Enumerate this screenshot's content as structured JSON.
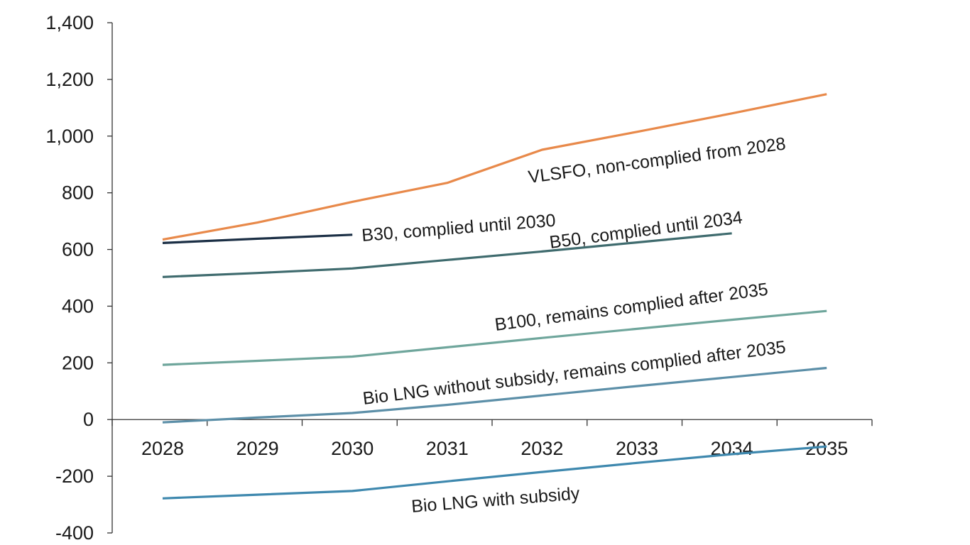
{
  "chart_data": {
    "type": "line",
    "categories": [
      "2028",
      "2029",
      "2030",
      "2031",
      "2032",
      "2033",
      "2034",
      "2035"
    ],
    "ylim": [
      -400,
      1400
    ],
    "yticks": [
      -400,
      -200,
      0,
      200,
      400,
      600,
      800,
      1000,
      1200,
      1400
    ],
    "ytick_labels": [
      "-400",
      "-200",
      "0",
      "200",
      "400",
      "600",
      "800",
      "1,000",
      "1,200",
      "1,400"
    ],
    "grid": false,
    "legend": "none (series labelled inline)",
    "series": [
      {
        "name": "VLSFO, non-complied from 2028",
        "color": "#E8894A",
        "x": [
          0,
          1,
          2,
          3,
          4,
          5,
          6,
          7
        ],
        "values": [
          635,
          695,
          768,
          835,
          952,
          1015,
          1080,
          1148
        ]
      },
      {
        "name": "B30, complied until 2030",
        "color": "#1B2F45",
        "x": [
          0,
          1,
          2
        ],
        "values": [
          623,
          638,
          652
        ]
      },
      {
        "name": "B50, complied until 2034",
        "color": "#3F6B6E",
        "x": [
          0,
          1,
          2,
          3,
          4,
          5,
          6
        ],
        "values": [
          503,
          517,
          533,
          563,
          593,
          625,
          657
        ]
      },
      {
        "name": "B100, remains complied after 2035",
        "color": "#6FA69C",
        "x": [
          0,
          1,
          2,
          3,
          4,
          5,
          6,
          7
        ],
        "values": [
          193,
          207,
          222,
          255,
          288,
          320,
          352,
          383
        ]
      },
      {
        "name": "Bio LNG without subsidy, remains complied after 2035",
        "color": "#5C8FA8",
        "x": [
          0,
          1,
          2,
          3,
          4,
          5,
          6,
          7
        ],
        "values": [
          -10,
          7,
          23,
          52,
          85,
          118,
          150,
          182
        ]
      },
      {
        "name": "Bio LNG with subsidy",
        "color": "#3E88AE",
        "x": [
          0,
          1,
          2,
          3,
          4,
          5,
          6,
          7
        ],
        "values": [
          -278,
          -265,
          -252,
          -218,
          -185,
          -153,
          -122,
          -95
        ]
      }
    ]
  }
}
